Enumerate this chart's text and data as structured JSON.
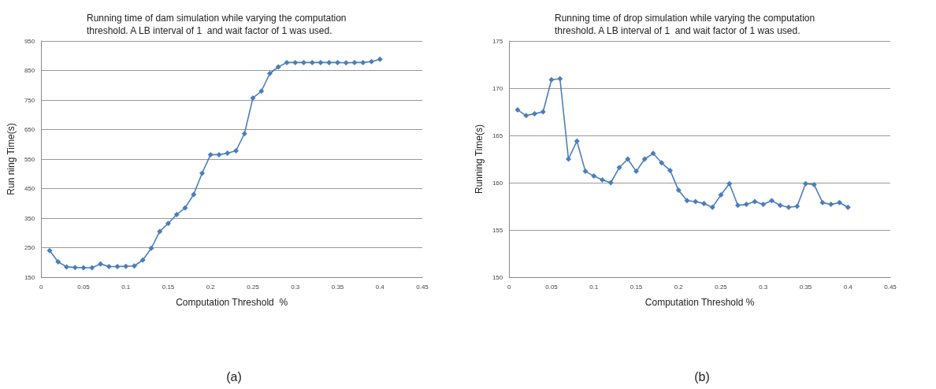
{
  "chart_data": [
    {
      "type": "line",
      "title": "Running time of dam simulation while varying the computation threshold. A LB interval of 1  and wait factor of 1 was used.",
      "xlabel": "Computation Threshold  %",
      "ylabel": "Run ning Time(s)",
      "annotations": [
        "(a)"
      ],
      "x": [
        0.01,
        0.02,
        0.03,
        0.04,
        0.05,
        0.06,
        0.07,
        0.08,
        0.09,
        0.1,
        0.11,
        0.12,
        0.13,
        0.14,
        0.15,
        0.16,
        0.17,
        0.18,
        0.19,
        0.2,
        0.21,
        0.22,
        0.23,
        0.24,
        0.25,
        0.26,
        0.27,
        0.28,
        0.29,
        0.3,
        0.31,
        0.32,
        0.33,
        0.34,
        0.35,
        0.36,
        0.37,
        0.38,
        0.39,
        0.4
      ],
      "series": [
        {
          "color": "#4a7ebb",
          "values": [
            240,
            202,
            185,
            183,
            182,
            182,
            195,
            186,
            186,
            187,
            188,
            208,
            248,
            305,
            332,
            362,
            385,
            430,
            502,
            565,
            565,
            570,
            578,
            636,
            757,
            780,
            840,
            862,
            877,
            877,
            877,
            877,
            877,
            877,
            877,
            876,
            877,
            877,
            880,
            888
          ]
        }
      ],
      "xlim": [
        0,
        0.45
      ],
      "xticks": [
        0,
        0.05,
        0.1,
        0.15,
        0.2,
        0.25,
        0.3,
        0.35,
        0.4,
        0.45
      ],
      "ylim": [
        150,
        950
      ],
      "yticks": [
        150,
        250,
        350,
        450,
        550,
        650,
        750,
        850,
        950
      ],
      "grid": "y",
      "marker": "diamond",
      "line_style": "solid"
    },
    {
      "type": "line",
      "title": "Running time of drop simulation while varying the computation threshold. A LB interval of 1  and wait factor of 1 was used.",
      "xlabel": "Computation Threshold %",
      "ylabel": "Running Time(s)",
      "annotations": [
        "(b)"
      ],
      "x": [
        0.01,
        0.02,
        0.03,
        0.04,
        0.05,
        0.06,
        0.07,
        0.08,
        0.09,
        0.1,
        0.11,
        0.12,
        0.13,
        0.14,
        0.15,
        0.16,
        0.17,
        0.18,
        0.19,
        0.2,
        0.21,
        0.22,
        0.23,
        0.24,
        0.25,
        0.26,
        0.27,
        0.28,
        0.29,
        0.3,
        0.31,
        0.32,
        0.33,
        0.34,
        0.35,
        0.36,
        0.37,
        0.38,
        0.39,
        0.4
      ],
      "series": [
        {
          "color": "#4a7ebb",
          "values": [
            167.7,
            167.1,
            167.3,
            167.5,
            170.9,
            171.0,
            162.5,
            164.4,
            161.2,
            160.7,
            160.3,
            160.0,
            161.6,
            162.5,
            161.2,
            162.5,
            163.1,
            162.1,
            161.3,
            159.2,
            158.1,
            158.0,
            157.8,
            157.4,
            158.7,
            159.9,
            157.6,
            157.7,
            158.0,
            157.7,
            158.1,
            157.6,
            157.4,
            157.5,
            159.9,
            159.8,
            157.9,
            157.7,
            157.9,
            157.4
          ]
        }
      ],
      "xlim": [
        0,
        0.45
      ],
      "xticks": [
        0,
        0.05,
        0.1,
        0.15,
        0.2,
        0.25,
        0.3,
        0.35,
        0.4,
        0.45
      ],
      "ylim": [
        150,
        175
      ],
      "yticks": [
        150,
        155,
        160,
        165,
        170,
        175
      ],
      "grid": "y",
      "marker": "diamond",
      "line_style": "solid"
    }
  ]
}
